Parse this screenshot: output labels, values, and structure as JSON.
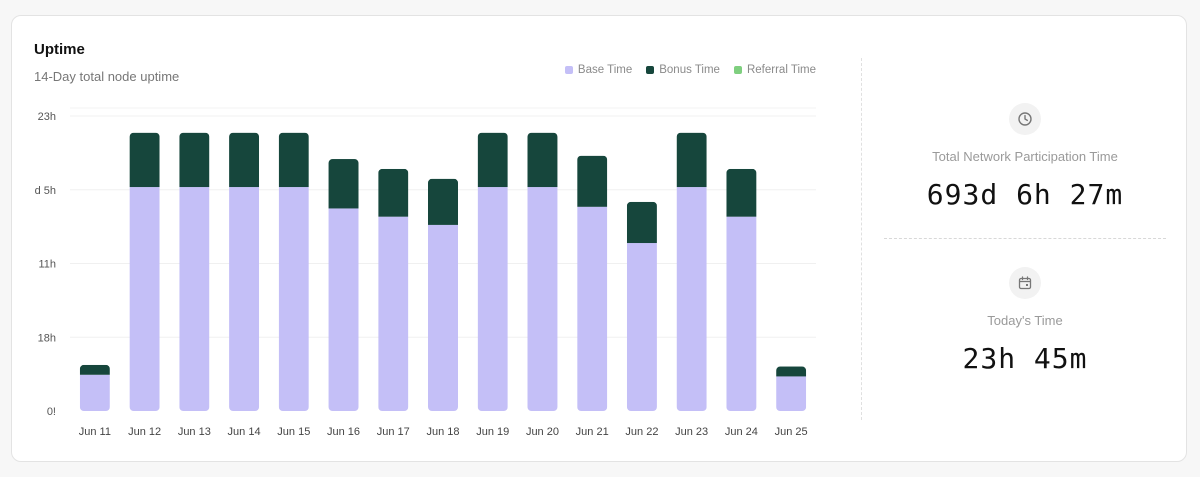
{
  "card": {
    "title": "Uptime",
    "subtitle": "14-Day total node uptime"
  },
  "legend": [
    {
      "label": "Base Time",
      "color": "#c4bff7"
    },
    {
      "label": "Bonus Time",
      "color": "#16463c"
    },
    {
      "label": "Referral Time",
      "color": "#7fcf7f"
    }
  ],
  "chart_data": {
    "type": "bar",
    "stacked": true,
    "categories": [
      "Jun 11",
      "Jun 12",
      "Jun 13",
      "Jun 14",
      "Jun 15",
      "Jun 16",
      "Jun 17",
      "Jun 18",
      "Jun 19",
      "Jun 20",
      "Jun 21",
      "Jun 22",
      "Jun 23",
      "Jun 24",
      "Jun 25"
    ],
    "y_ticks": [
      "23h",
      "d 5h",
      "11h",
      "18h",
      "0!"
    ],
    "y_unit": "hours",
    "ylim": [
      0,
      92
    ],
    "series": [
      {
        "name": "Base Time",
        "color": "#c4bff7",
        "values": [
          11,
          68,
          68,
          68,
          68,
          61.5,
          59,
          56.5,
          68,
          68,
          62,
          51,
          68,
          59,
          10.5
        ]
      },
      {
        "name": "Bonus Time",
        "color": "#16463c",
        "values": [
          3,
          16.5,
          16.5,
          16.5,
          16.5,
          15,
          14.5,
          14,
          16.5,
          16.5,
          15.5,
          12.5,
          16.5,
          14.5,
          3
        ]
      },
      {
        "name": "Referral Time",
        "color": "#7fcf7f",
        "values": [
          0,
          0,
          0,
          0,
          0,
          0,
          0,
          0,
          0,
          0,
          0,
          0,
          0,
          0,
          0
        ]
      }
    ],
    "grid": true,
    "legend_position": "top-right"
  },
  "stats": {
    "total": {
      "label": "Total Network Participation Time",
      "value": "693d 6h 27m",
      "icon": "clock-icon"
    },
    "today": {
      "label": "Today's Time",
      "value": "23h 45m",
      "icon": "calendar-icon"
    }
  }
}
